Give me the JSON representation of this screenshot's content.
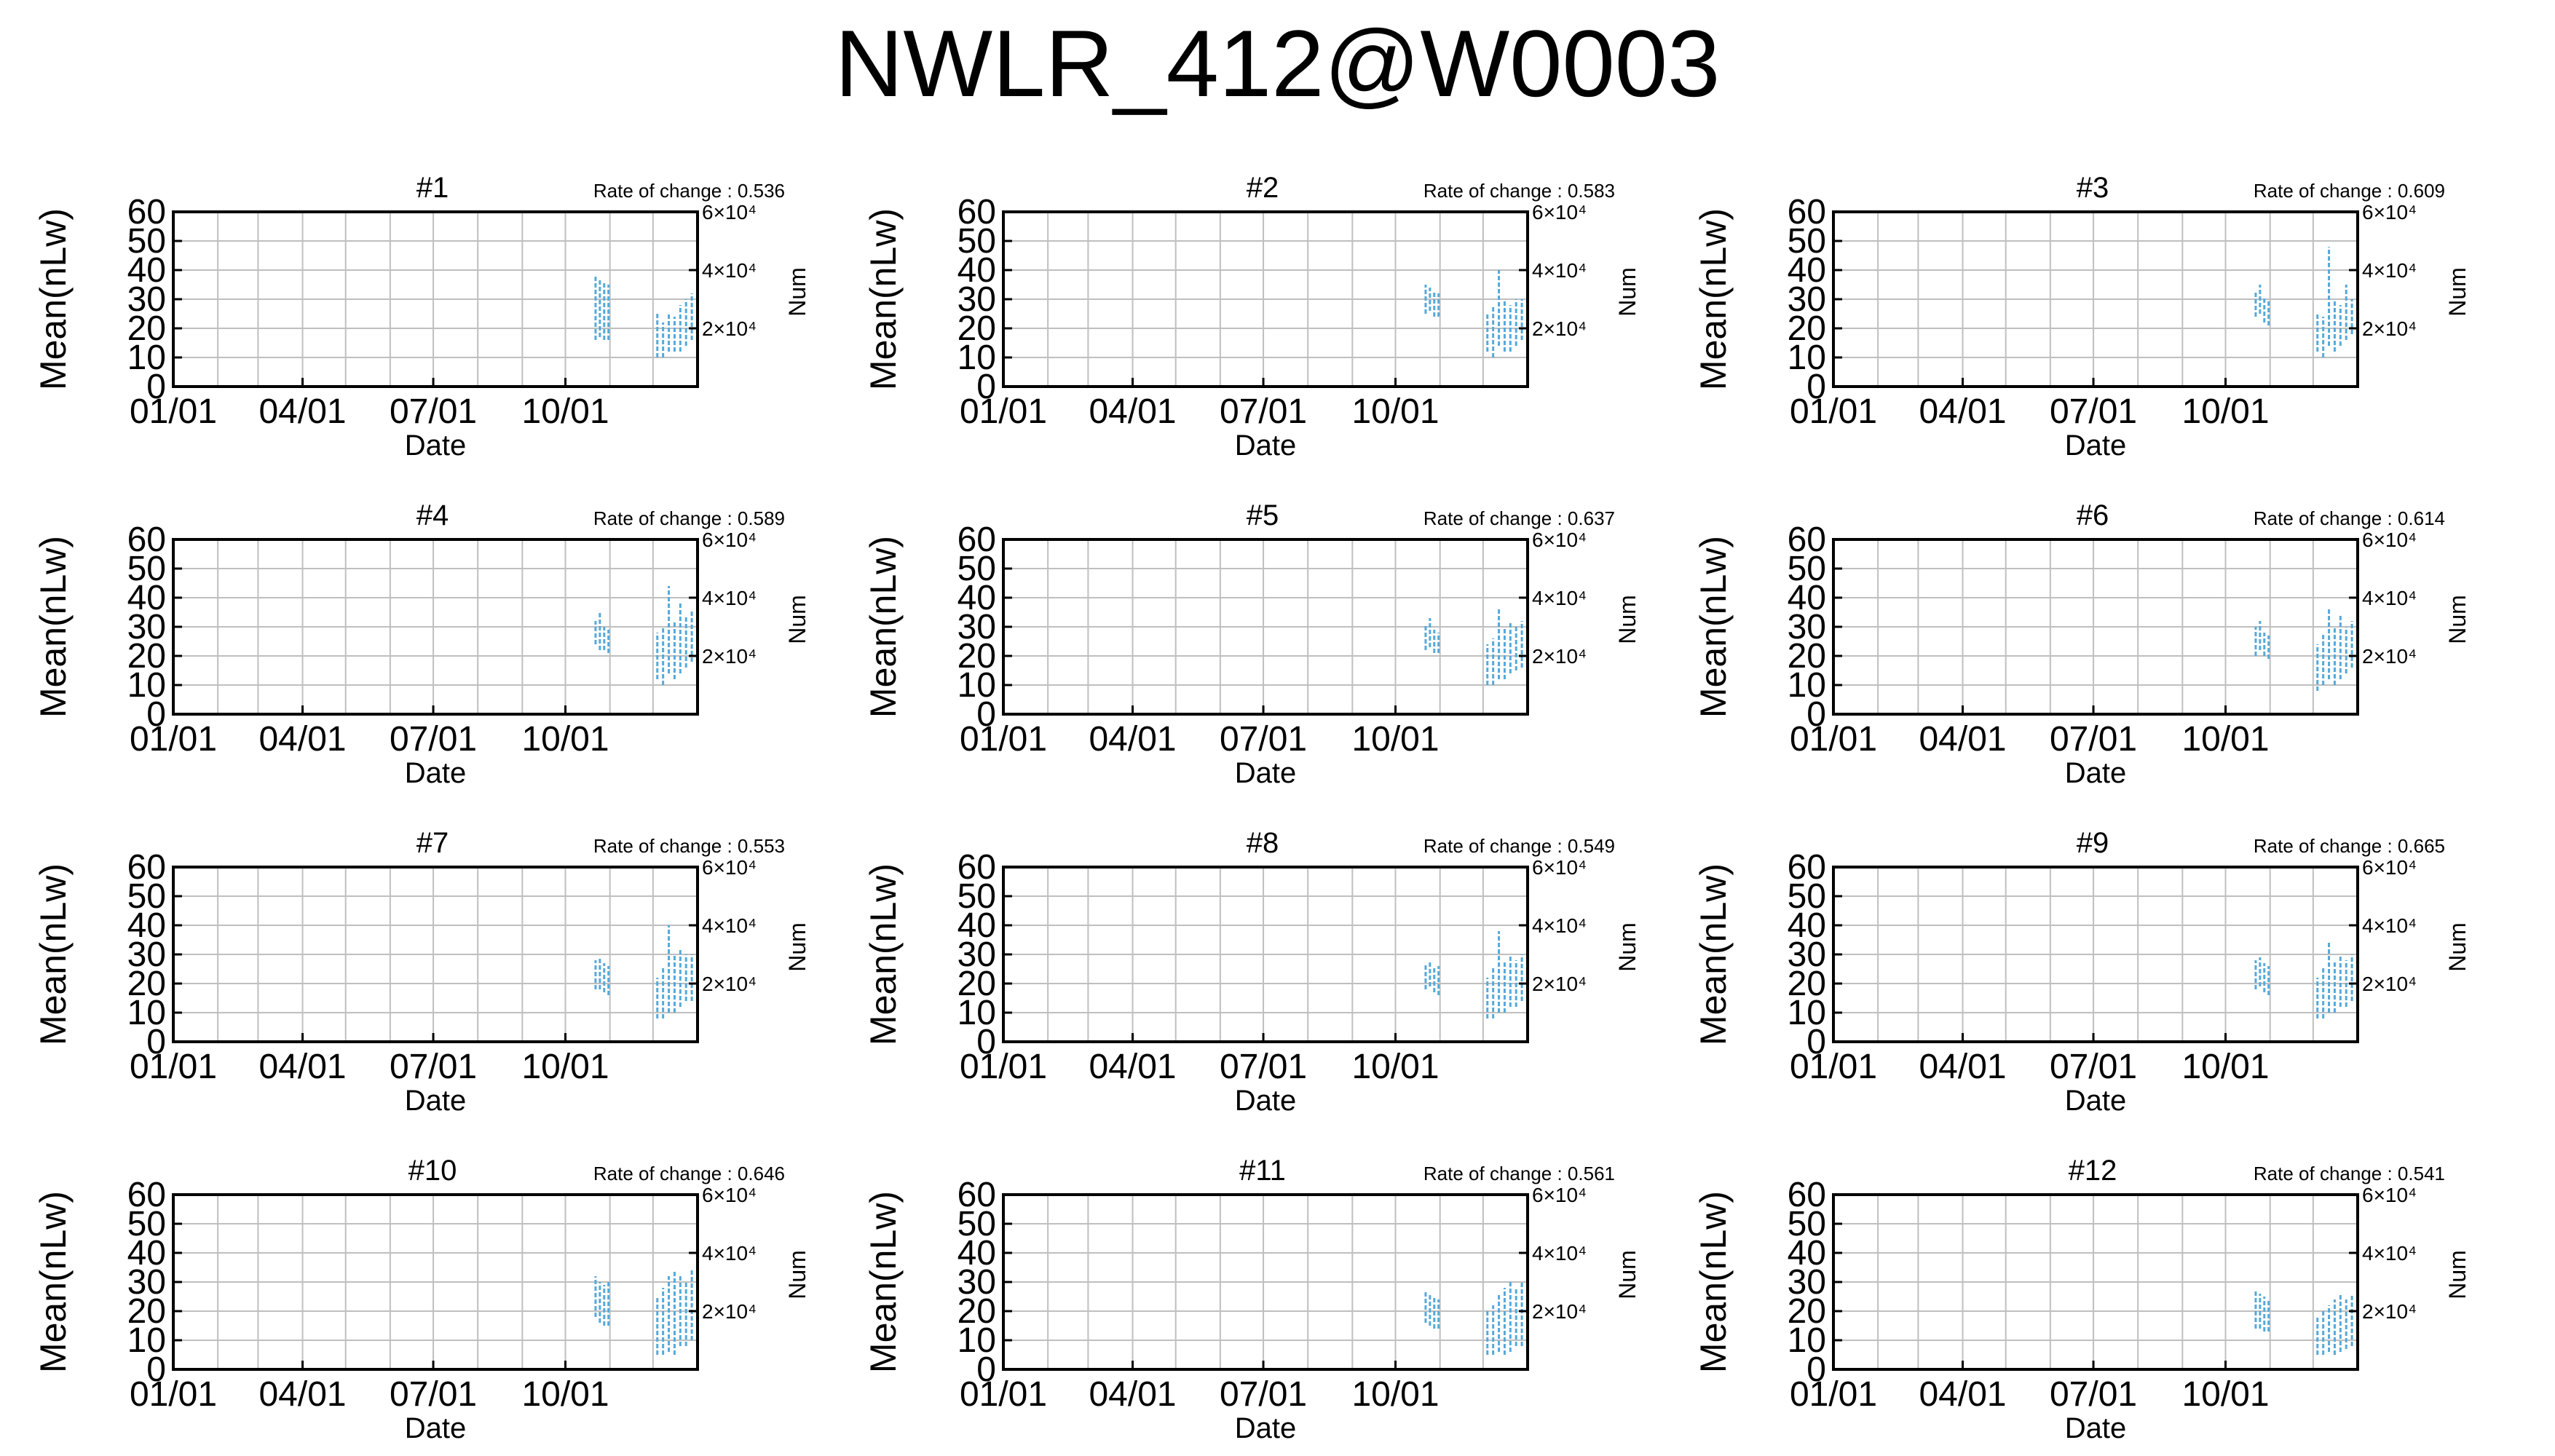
{
  "title": "NWLR_412@W0003",
  "colors": {
    "data": "#56a9d9",
    "frame": "#000000",
    "grid": "#bfbfbf"
  },
  "common": {
    "ylabel": "Mean(nLw)",
    "xlabel": "Date",
    "y2label": "Num",
    "rate_prefix": "Rate of change : ",
    "yticks": [
      "0",
      "10",
      "20",
      "30",
      "40",
      "50",
      "60"
    ],
    "xticks": [
      "01/01",
      "04/01",
      "07/01",
      "10/01"
    ],
    "y2ticks": [
      "2×10⁴",
      "4×10⁴",
      "6×10⁴"
    ]
  },
  "chart_data": [
    {
      "type": "scatter",
      "title": "#1",
      "rate": "0.536",
      "xlabel": "Date",
      "ylabel": "Mean(nLw)",
      "y2label": "Num",
      "ylim": [
        0,
        60
      ],
      "y2lim": [
        0,
        60000
      ],
      "xlim": [
        "01/01",
        "12/31"
      ],
      "grid": true,
      "mean_bars": [
        {
          "x": "10/22",
          "low": 16,
          "high": 38
        },
        {
          "x": "10/25",
          "low": 17,
          "high": 37
        },
        {
          "x": "10/28",
          "low": 16,
          "high": 36
        },
        {
          "x": "10/31",
          "low": 16,
          "high": 35
        },
        {
          "x": "12/04",
          "low": 10,
          "high": 25
        },
        {
          "x": "12/08",
          "low": 10,
          "high": 22
        },
        {
          "x": "12/12",
          "low": 12,
          "high": 25
        },
        {
          "x": "12/16",
          "low": 12,
          "high": 24
        },
        {
          "x": "12/20",
          "low": 12,
          "high": 28
        },
        {
          "x": "12/24",
          "low": 14,
          "high": 30
        },
        {
          "x": "12/28",
          "low": 16,
          "high": 32
        }
      ]
    },
    {
      "type": "scatter",
      "title": "#2",
      "rate": "0.583",
      "xlabel": "Date",
      "ylabel": "Mean(nLw)",
      "y2label": "Num",
      "ylim": [
        0,
        60
      ],
      "y2lim": [
        0,
        60000
      ],
      "xlim": [
        "01/01",
        "12/31"
      ],
      "grid": true,
      "mean_bars": [
        {
          "x": "10/22",
          "low": 25,
          "high": 35
        },
        {
          "x": "10/25",
          "low": 26,
          "high": 34
        },
        {
          "x": "10/28",
          "low": 24,
          "high": 33
        },
        {
          "x": "10/31",
          "low": 24,
          "high": 32
        },
        {
          "x": "12/04",
          "low": 12,
          "high": 25
        },
        {
          "x": "12/08",
          "low": 10,
          "high": 28
        },
        {
          "x": "12/12",
          "low": 14,
          "high": 40
        },
        {
          "x": "12/16",
          "low": 12,
          "high": 30
        },
        {
          "x": "12/20",
          "low": 12,
          "high": 28
        },
        {
          "x": "12/24",
          "low": 14,
          "high": 30
        },
        {
          "x": "12/28",
          "low": 16,
          "high": 30
        }
      ]
    },
    {
      "type": "scatter",
      "title": "#3",
      "rate": "0.609",
      "xlabel": "Date",
      "ylabel": "Mean(nLw)",
      "y2label": "Num",
      "ylim": [
        0,
        60
      ],
      "y2lim": [
        0,
        60000
      ],
      "xlim": [
        "01/01",
        "12/31"
      ],
      "grid": true,
      "mean_bars": [
        {
          "x": "10/22",
          "low": 24,
          "high": 33
        },
        {
          "x": "10/25",
          "low": 25,
          "high": 35
        },
        {
          "x": "10/28",
          "low": 22,
          "high": 31
        },
        {
          "x": "10/31",
          "low": 21,
          "high": 30
        },
        {
          "x": "12/04",
          "low": 12,
          "high": 25
        },
        {
          "x": "12/08",
          "low": 10,
          "high": 24
        },
        {
          "x": "12/12",
          "low": 14,
          "high": 48
        },
        {
          "x": "12/16",
          "low": 12,
          "high": 30
        },
        {
          "x": "12/20",
          "low": 14,
          "high": 28
        },
        {
          "x": "12/24",
          "low": 16,
          "high": 35
        },
        {
          "x": "12/28",
          "low": 18,
          "high": 30
        }
      ]
    },
    {
      "type": "scatter",
      "title": "#4",
      "rate": "0.589",
      "xlabel": "Date",
      "ylabel": "Mean(nLw)",
      "y2label": "Num",
      "ylim": [
        0,
        60
      ],
      "y2lim": [
        0,
        60000
      ],
      "xlim": [
        "01/01",
        "12/31"
      ],
      "grid": true,
      "mean_bars": [
        {
          "x": "10/22",
          "low": 24,
          "high": 32
        },
        {
          "x": "10/25",
          "low": 22,
          "high": 35
        },
        {
          "x": "10/28",
          "low": 22,
          "high": 30
        },
        {
          "x": "10/31",
          "low": 21,
          "high": 29
        },
        {
          "x": "12/04",
          "low": 12,
          "high": 28
        },
        {
          "x": "12/08",
          "low": 10,
          "high": 30
        },
        {
          "x": "12/12",
          "low": 14,
          "high": 44
        },
        {
          "x": "12/16",
          "low": 12,
          "high": 32
        },
        {
          "x": "12/20",
          "low": 14,
          "high": 38
        },
        {
          "x": "12/24",
          "low": 16,
          "high": 34
        },
        {
          "x": "12/28",
          "low": 18,
          "high": 36
        }
      ]
    },
    {
      "type": "scatter",
      "title": "#5",
      "rate": "0.637",
      "xlabel": "Date",
      "ylabel": "Mean(nLw)",
      "y2label": "Num",
      "ylim": [
        0,
        60
      ],
      "y2lim": [
        0,
        60000
      ],
      "xlim": [
        "01/01",
        "12/31"
      ],
      "grid": true,
      "mean_bars": [
        {
          "x": "10/22",
          "low": 22,
          "high": 31
        },
        {
          "x": "10/25",
          "low": 23,
          "high": 33
        },
        {
          "x": "10/28",
          "low": 21,
          "high": 29
        },
        {
          "x": "10/31",
          "low": 21,
          "high": 28
        },
        {
          "x": "12/04",
          "low": 10,
          "high": 24
        },
        {
          "x": "12/08",
          "low": 10,
          "high": 26
        },
        {
          "x": "12/12",
          "low": 12,
          "high": 36
        },
        {
          "x": "12/16",
          "low": 12,
          "high": 30
        },
        {
          "x": "12/20",
          "low": 14,
          "high": 32
        },
        {
          "x": "12/24",
          "low": 15,
          "high": 30
        },
        {
          "x": "12/28",
          "low": 16,
          "high": 32
        }
      ]
    },
    {
      "type": "scatter",
      "title": "#6",
      "rate": "0.614",
      "xlabel": "Date",
      "ylabel": "Mean(nLw)",
      "y2label": "Num",
      "ylim": [
        0,
        60
      ],
      "y2lim": [
        0,
        60000
      ],
      "xlim": [
        "01/01",
        "12/31"
      ],
      "grid": true,
      "mean_bars": [
        {
          "x": "10/22",
          "low": 20,
          "high": 30
        },
        {
          "x": "10/25",
          "low": 22,
          "high": 32
        },
        {
          "x": "10/28",
          "low": 20,
          "high": 28
        },
        {
          "x": "10/31",
          "low": 19,
          "high": 27
        },
        {
          "x": "12/04",
          "low": 8,
          "high": 24
        },
        {
          "x": "12/08",
          "low": 10,
          "high": 28
        },
        {
          "x": "12/12",
          "low": 12,
          "high": 36
        },
        {
          "x": "12/16",
          "low": 10,
          "high": 30
        },
        {
          "x": "12/20",
          "low": 12,
          "high": 34
        },
        {
          "x": "12/24",
          "low": 14,
          "high": 30
        },
        {
          "x": "12/28",
          "low": 16,
          "high": 32
        }
      ]
    },
    {
      "type": "scatter",
      "title": "#7",
      "rate": "0.553",
      "xlabel": "Date",
      "ylabel": "Mean(nLw)",
      "y2label": "Num",
      "ylim": [
        0,
        60
      ],
      "y2lim": [
        0,
        60000
      ],
      "xlim": [
        "01/01",
        "12/31"
      ],
      "grid": true,
      "mean_bars": [
        {
          "x": "10/22",
          "low": 18,
          "high": 28
        },
        {
          "x": "10/25",
          "low": 18,
          "high": 29
        },
        {
          "x": "10/28",
          "low": 17,
          "high": 27
        },
        {
          "x": "10/31",
          "low": 16,
          "high": 26
        },
        {
          "x": "12/04",
          "low": 8,
          "high": 22
        },
        {
          "x": "12/08",
          "low": 8,
          "high": 26
        },
        {
          "x": "12/12",
          "low": 10,
          "high": 40
        },
        {
          "x": "12/16",
          "low": 10,
          "high": 30
        },
        {
          "x": "12/20",
          "low": 12,
          "high": 32
        },
        {
          "x": "12/24",
          "low": 14,
          "high": 30
        },
        {
          "x": "12/28",
          "low": 14,
          "high": 30
        }
      ]
    },
    {
      "type": "scatter",
      "title": "#8",
      "rate": "0.549",
      "xlabel": "Date",
      "ylabel": "Mean(nLw)",
      "y2label": "Num",
      "ylim": [
        0,
        60
      ],
      "y2lim": [
        0,
        60000
      ],
      "xlim": [
        "01/01",
        "12/31"
      ],
      "grid": true,
      "mean_bars": [
        {
          "x": "10/22",
          "low": 18,
          "high": 27
        },
        {
          "x": "10/25",
          "low": 19,
          "high": 28
        },
        {
          "x": "10/28",
          "low": 17,
          "high": 26
        },
        {
          "x": "10/31",
          "low": 16,
          "high": 26
        },
        {
          "x": "12/04",
          "low": 8,
          "high": 22
        },
        {
          "x": "12/08",
          "low": 8,
          "high": 26
        },
        {
          "x": "12/12",
          "low": 10,
          "high": 38
        },
        {
          "x": "12/16",
          "low": 10,
          "high": 28
        },
        {
          "x": "12/20",
          "low": 12,
          "high": 30
        },
        {
          "x": "12/24",
          "low": 12,
          "high": 28
        },
        {
          "x": "12/28",
          "low": 14,
          "high": 30
        }
      ]
    },
    {
      "type": "scatter",
      "title": "#9",
      "rate": "0.665",
      "xlabel": "Date",
      "ylabel": "Mean(nLw)",
      "y2label": "Num",
      "ylim": [
        0,
        60
      ],
      "y2lim": [
        0,
        60000
      ],
      "xlim": [
        "01/01",
        "12/31"
      ],
      "grid": true,
      "mean_bars": [
        {
          "x": "10/22",
          "low": 18,
          "high": 28
        },
        {
          "x": "10/25",
          "low": 19,
          "high": 29
        },
        {
          "x": "10/28",
          "low": 17,
          "high": 27
        },
        {
          "x": "10/31",
          "low": 16,
          "high": 26
        },
        {
          "x": "12/04",
          "low": 8,
          "high": 22
        },
        {
          "x": "12/08",
          "low": 8,
          "high": 26
        },
        {
          "x": "12/12",
          "low": 10,
          "high": 34
        },
        {
          "x": "12/16",
          "low": 10,
          "high": 28
        },
        {
          "x": "12/20",
          "low": 12,
          "high": 30
        },
        {
          "x": "12/24",
          "low": 12,
          "high": 28
        },
        {
          "x": "12/28",
          "low": 14,
          "high": 30
        }
      ]
    },
    {
      "type": "scatter",
      "title": "#10",
      "rate": "0.646",
      "xlabel": "Date",
      "ylabel": "Mean(nLw)",
      "y2label": "Num",
      "ylim": [
        0,
        60
      ],
      "y2lim": [
        0,
        60000
      ],
      "xlim": [
        "01/01",
        "12/31"
      ],
      "grid": true,
      "mean_bars": [
        {
          "x": "10/22",
          "low": 18,
          "high": 32
        },
        {
          "x": "10/25",
          "low": 16,
          "high": 30
        },
        {
          "x": "10/28",
          "low": 15,
          "high": 29
        },
        {
          "x": "10/31",
          "low": 15,
          "high": 30
        },
        {
          "x": "12/04",
          "low": 5,
          "high": 25
        },
        {
          "x": "12/08",
          "low": 5,
          "high": 28
        },
        {
          "x": "12/12",
          "low": 6,
          "high": 32
        },
        {
          "x": "12/16",
          "low": 5,
          "high": 34
        },
        {
          "x": "12/20",
          "low": 8,
          "high": 32
        },
        {
          "x": "12/24",
          "low": 8,
          "high": 30
        },
        {
          "x": "12/28",
          "low": 10,
          "high": 34
        }
      ]
    },
    {
      "type": "scatter",
      "title": "#11",
      "rate": "0.561",
      "xlabel": "Date",
      "ylabel": "Mean(nLw)",
      "y2label": "Num",
      "ylim": [
        0,
        60
      ],
      "y2lim": [
        0,
        60000
      ],
      "xlim": [
        "01/01",
        "12/31"
      ],
      "grid": true,
      "mean_bars": [
        {
          "x": "10/22",
          "low": 16,
          "high": 27
        },
        {
          "x": "10/25",
          "low": 15,
          "high": 26
        },
        {
          "x": "10/28",
          "low": 14,
          "high": 25
        },
        {
          "x": "10/31",
          "low": 14,
          "high": 24
        },
        {
          "x": "12/04",
          "low": 5,
          "high": 20
        },
        {
          "x": "12/08",
          "low": 5,
          "high": 22
        },
        {
          "x": "12/12",
          "low": 6,
          "high": 26
        },
        {
          "x": "12/16",
          "low": 5,
          "high": 28
        },
        {
          "x": "12/20",
          "low": 6,
          "high": 30
        },
        {
          "x": "12/24",
          "low": 8,
          "high": 28
        },
        {
          "x": "12/28",
          "low": 8,
          "high": 30
        }
      ]
    },
    {
      "type": "scatter",
      "title": "#12",
      "rate": "0.541",
      "xlabel": "Date",
      "ylabel": "Mean(nLw)",
      "y2label": "Num",
      "ylim": [
        0,
        60
      ],
      "y2lim": [
        0,
        60000
      ],
      "xlim": [
        "01/01",
        "12/31"
      ],
      "grid": true,
      "mean_bars": [
        {
          "x": "10/22",
          "low": 14,
          "high": 27
        },
        {
          "x": "10/25",
          "low": 14,
          "high": 26
        },
        {
          "x": "10/28",
          "low": 13,
          "high": 25
        },
        {
          "x": "10/31",
          "low": 13,
          "high": 24
        },
        {
          "x": "12/04",
          "low": 5,
          "high": 18
        },
        {
          "x": "12/08",
          "low": 5,
          "high": 20
        },
        {
          "x": "12/12",
          "low": 6,
          "high": 22
        },
        {
          "x": "12/16",
          "low": 5,
          "high": 24
        },
        {
          "x": "12/20",
          "low": 6,
          "high": 26
        },
        {
          "x": "12/24",
          "low": 7,
          "high": 24
        },
        {
          "x": "12/28",
          "low": 8,
          "high": 26
        }
      ]
    }
  ]
}
